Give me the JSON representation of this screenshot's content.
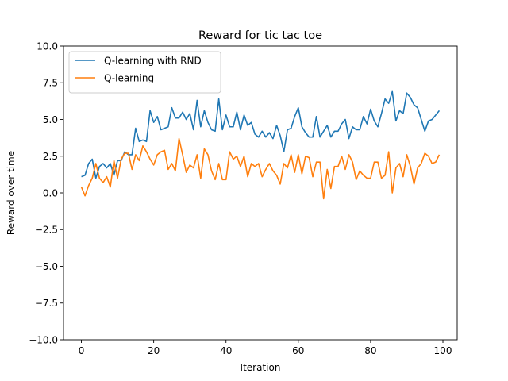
{
  "chart_data": {
    "type": "line",
    "title": "Reward for tic tac toe",
    "xlabel": "Iteration",
    "ylabel": "Reward over time",
    "xlim": [
      -4.95,
      103.95
    ],
    "ylim": [
      -10.0,
      10.0
    ],
    "xticks": [
      0,
      20,
      40,
      60,
      80,
      100
    ],
    "yticks": [
      -10.0,
      -7.5,
      -5.0,
      -2.5,
      0.0,
      2.5,
      5.0,
      7.5,
      10.0
    ],
    "xtick_labels": [
      "0",
      "20",
      "40",
      "60",
      "80",
      "100"
    ],
    "ytick_labels": [
      "−10.0",
      "−7.5",
      "−5.0",
      "−2.5",
      "0.0",
      "2.5",
      "5.0",
      "7.5",
      "10.0"
    ],
    "grid": false,
    "legend": "top-left",
    "x": [
      0,
      1,
      2,
      3,
      4,
      5,
      6,
      7,
      8,
      9,
      10,
      11,
      12,
      13,
      14,
      15,
      16,
      17,
      18,
      19,
      20,
      21,
      22,
      23,
      24,
      25,
      26,
      27,
      28,
      29,
      30,
      31,
      32,
      33,
      34,
      35,
      36,
      37,
      38,
      39,
      40,
      41,
      42,
      43,
      44,
      45,
      46,
      47,
      48,
      49,
      50,
      51,
      52,
      53,
      54,
      55,
      56,
      57,
      58,
      59,
      60,
      61,
      62,
      63,
      64,
      65,
      66,
      67,
      68,
      69,
      70,
      71,
      72,
      73,
      74,
      75,
      76,
      77,
      78,
      79,
      80,
      81,
      82,
      83,
      84,
      85,
      86,
      87,
      88,
      89,
      90,
      91,
      92,
      93,
      94,
      95,
      96,
      97,
      98,
      99
    ],
    "series": [
      {
        "name": "Q-learning with RND",
        "color": "#1f77b4",
        "values": [
          1.1,
          1.2,
          2.0,
          2.3,
          1.0,
          1.8,
          2.0,
          1.7,
          2.0,
          1.2,
          2.2,
          2.2,
          2.8,
          2.6,
          2.6,
          4.4,
          3.5,
          3.6,
          3.5,
          5.6,
          4.8,
          5.2,
          4.3,
          4.4,
          4.5,
          5.8,
          5.1,
          5.1,
          5.5,
          5.0,
          5.4,
          4.3,
          6.3,
          4.5,
          5.6,
          4.8,
          4.3,
          4.2,
          6.4,
          4.3,
          5.3,
          4.5,
          4.5,
          5.5,
          4.3,
          5.3,
          4.6,
          4.8,
          4.0,
          3.8,
          4.2,
          3.8,
          4.1,
          3.7,
          4.6,
          3.9,
          2.8,
          4.3,
          4.4,
          5.2,
          5.8,
          4.5,
          4.1,
          3.8,
          3.8,
          5.2,
          3.8,
          4.2,
          4.6,
          3.8,
          4.2,
          4.2,
          4.7,
          5.0,
          3.7,
          4.5,
          4.3,
          4.3,
          5.2,
          4.7,
          5.7,
          4.9,
          4.5,
          5.4,
          6.4,
          6.1,
          6.9,
          4.9,
          5.6,
          5.4,
          6.8,
          6.5,
          6.0,
          5.8,
          5.0,
          4.2,
          4.9,
          5.0,
          5.3,
          5.6
        ]
      },
      {
        "name": "Q-learning",
        "color": "#ff7f0e",
        "values": [
          0.4,
          -0.2,
          0.5,
          1.0,
          2.0,
          1.0,
          0.7,
          1.1,
          0.4,
          2.2,
          1.0,
          2.3,
          2.7,
          2.7,
          1.6,
          2.6,
          2.2,
          3.2,
          2.8,
          2.3,
          1.9,
          2.6,
          2.8,
          2.9,
          1.6,
          2.0,
          1.5,
          3.7,
          2.6,
          1.4,
          1.9,
          1.7,
          2.6,
          1.0,
          3.0,
          2.6,
          1.5,
          0.9,
          2.0,
          0.9,
          0.9,
          2.8,
          2.3,
          2.5,
          1.8,
          2.5,
          1.1,
          2.0,
          1.8,
          2.0,
          1.1,
          1.6,
          2.0,
          1.5,
          1.2,
          0.6,
          2.0,
          1.7,
          2.6,
          1.4,
          2.6,
          1.3,
          2.5,
          2.4,
          1.1,
          2.1,
          2.1,
          -0.4,
          1.6,
          0.3,
          1.8,
          1.8,
          2.5,
          1.6,
          2.6,
          2.1,
          0.9,
          1.5,
          1.2,
          1.0,
          1.0,
          2.1,
          2.1,
          1.0,
          1.2,
          2.8,
          0.0,
          1.7,
          2.0,
          1.1,
          2.6,
          1.8,
          0.6,
          1.7,
          2.0,
          2.7,
          2.5,
          2.0,
          2.1,
          2.6
        ]
      }
    ]
  }
}
